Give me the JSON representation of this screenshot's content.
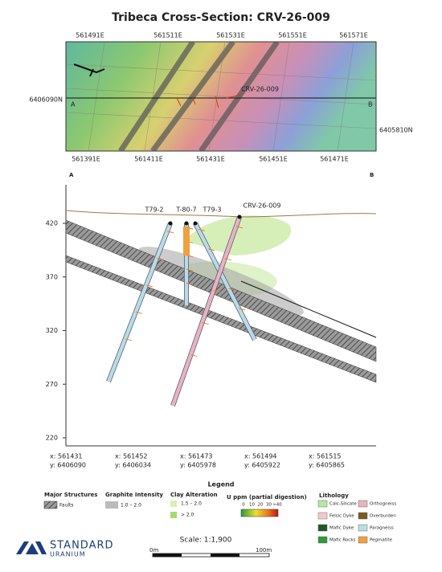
{
  "title": "Tribeca Cross-Section: CRV-26-009",
  "map": {
    "top_eastings": [
      "561491E",
      "561511E",
      "561531E",
      "561551E",
      "561571E"
    ],
    "bottom_eastings": [
      "561391E",
      "561411E",
      "561431E",
      "561451E",
      "561471E"
    ],
    "left_northing": "6406090N",
    "right_northing": "6405810N",
    "section_start": "A",
    "section_end": "B",
    "hole_label": "CRV-26-009"
  },
  "section": {
    "start": "A",
    "end": "B",
    "elevation_ticks": [
      420,
      370,
      320,
      270,
      220
    ],
    "holes": [
      "T79-2",
      "T-80-7",
      "T79-3",
      "CRV-26-009"
    ],
    "coordinates": [
      {
        "x": "x: 561431",
        "y": "y: 6406090"
      },
      {
        "x": "x: 561452",
        "y": "y: 6406034"
      },
      {
        "x": "x: 561473",
        "y": "y: 6405978"
      },
      {
        "x": "x: 561494",
        "y": "y: 6405922"
      },
      {
        "x": "x: 561515",
        "y": "y: 6405865"
      }
    ]
  },
  "legend": {
    "title": "Legend",
    "structures": {
      "heading": "Major Structures",
      "items": [
        "Faults"
      ]
    },
    "graphite": {
      "heading": "Graphite Intensity",
      "items": [
        "1.0 – 2.0"
      ]
    },
    "clay": {
      "heading": "Clay Alteration",
      "items": [
        "1.5 – 2.0",
        "> 2.0"
      ]
    },
    "uranium": {
      "heading": "U ppm (partial digestion)",
      "ticks": [
        "0",
        "10",
        "20",
        "30",
        ">40"
      ]
    },
    "lithology": {
      "heading": "Lithology",
      "items": [
        "Calc-Silicate",
        "Orthogneiss",
        "Felsic Dyke",
        "Overburden",
        "Mafic Dyke",
        "Paragneiss",
        "Mafic Rocks",
        "Pegmatite"
      ]
    }
  },
  "logo": {
    "name": "STANDARD",
    "sub": "URANIUM"
  },
  "scale": {
    "label": "Scale: 1:1,900",
    "start": "0m",
    "end": "100m"
  }
}
